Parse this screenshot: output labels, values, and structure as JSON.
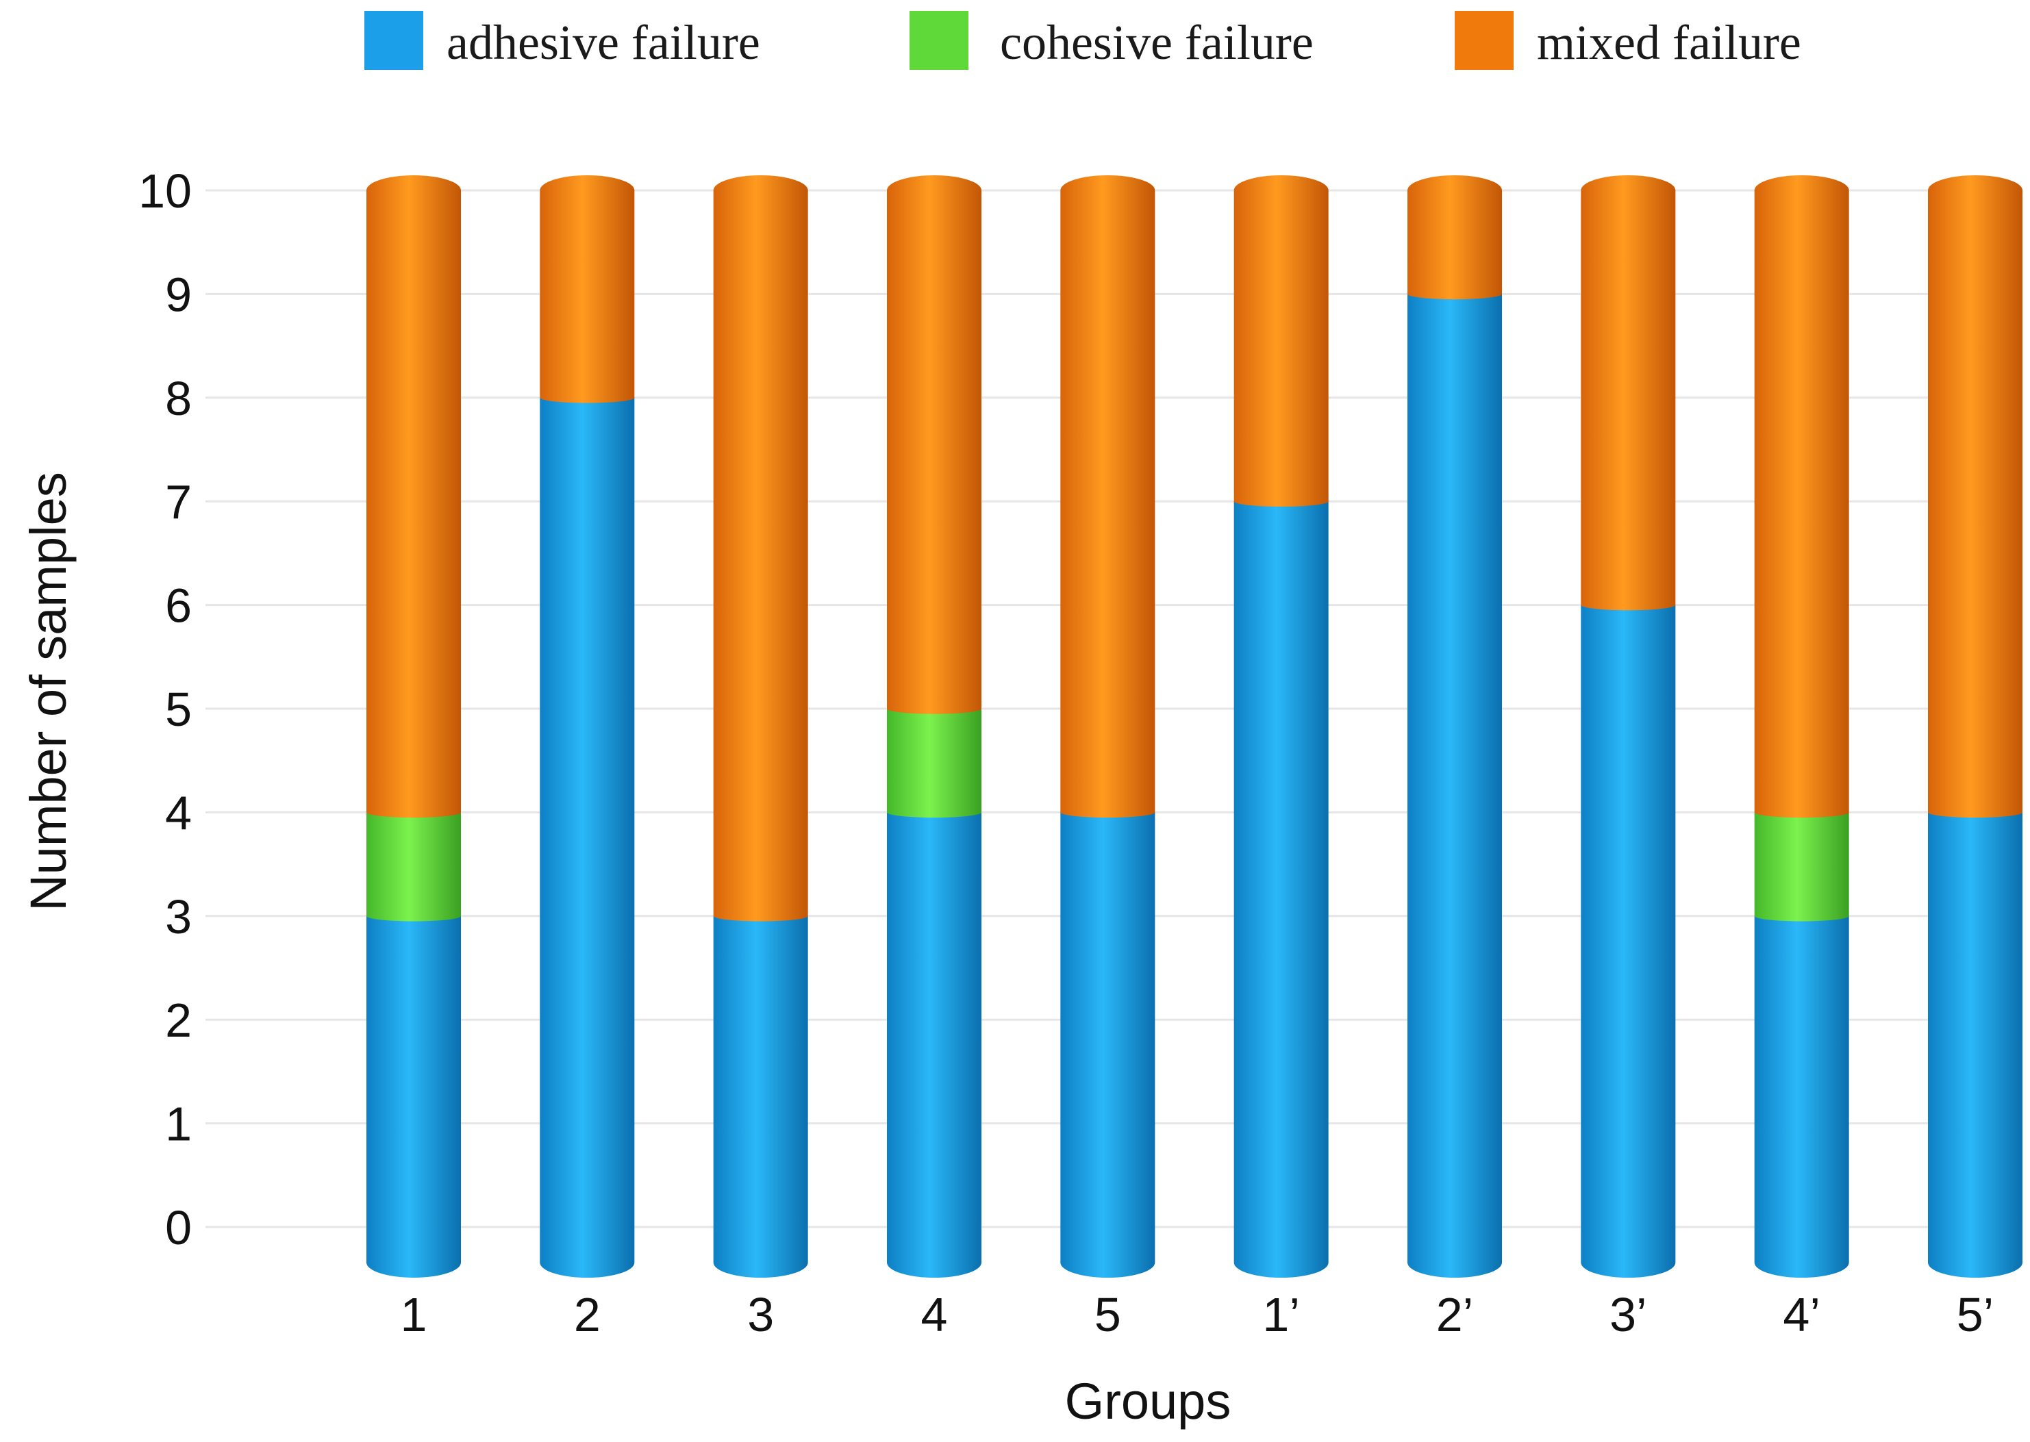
{
  "chart_data": {
    "type": "bar",
    "stacked": true,
    "title": "",
    "xlabel": "Groups",
    "ylabel": "Number of samples",
    "categories": [
      "1",
      "2",
      "3",
      "4",
      "5",
      "1’",
      "2’",
      "3’",
      "4’",
      "5’"
    ],
    "series": [
      {
        "name": "adhesive failure",
        "color": "#1a9fe8",
        "values": [
          3,
          8,
          3,
          4,
          4,
          7,
          9,
          6,
          3,
          4
        ]
      },
      {
        "name": "cohesive failure",
        "color": "#5fd93a",
        "values": [
          1,
          0,
          0,
          1,
          0,
          0,
          0,
          0,
          1,
          0
        ]
      },
      {
        "name": "mixed failure",
        "color": "#f07a0c",
        "values": [
          6,
          2,
          7,
          5,
          6,
          3,
          1,
          4,
          6,
          6
        ]
      }
    ],
    "yticks": [
      "0",
      "1",
      "2",
      "3",
      "4",
      "5",
      "6",
      "7",
      "8",
      "9",
      "10"
    ],
    "ylim": [
      0,
      10
    ],
    "grid": true,
    "legend_position": "top"
  }
}
